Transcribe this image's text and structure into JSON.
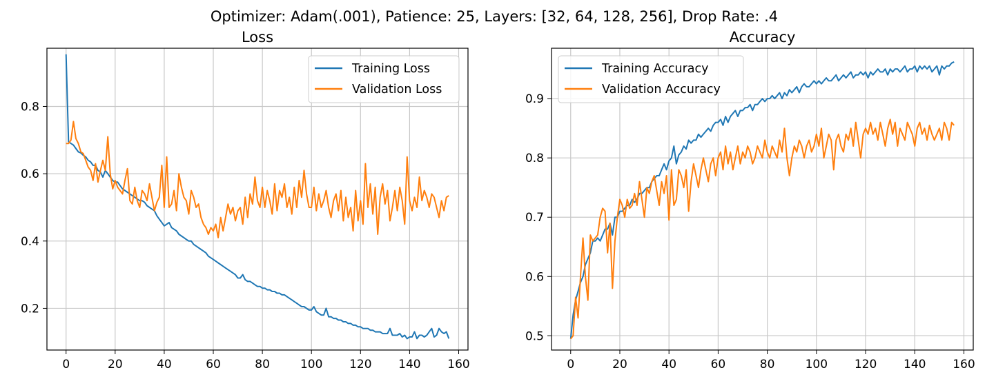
{
  "suptitle": "Optimizer: Adam(.001), Patience: 25, Layers: [32, 64, 128, 256], Drop Rate: .4",
  "colors": {
    "series1": "#1f77b4",
    "series2": "#ff7f0e",
    "grid": "#c8c8c8"
  },
  "chart_data": [
    {
      "type": "line",
      "title": "Loss",
      "xlabel": "",
      "ylabel": "",
      "xlim": [
        -7.8,
        163.8
      ],
      "ylim": [
        0.076,
        0.973
      ],
      "xticks": [
        0,
        20,
        40,
        60,
        80,
        100,
        120,
        140,
        160
      ],
      "yticks": [
        0.2,
        0.4,
        0.6,
        0.8
      ],
      "ytick_labels": [
        "0.2",
        "0.4",
        "0.6",
        "0.8"
      ],
      "grid": true,
      "legend": "upper right",
      "x": {
        "start": 0,
        "end": 156
      },
      "series": [
        {
          "name": "Training Loss",
          "color": "#1f77b4",
          "values": [
            0.955,
            0.695,
            0.69,
            0.685,
            0.675,
            0.665,
            0.662,
            0.655,
            0.65,
            0.64,
            0.635,
            0.625,
            0.625,
            0.61,
            0.605,
            0.59,
            0.61,
            0.6,
            0.59,
            0.58,
            0.575,
            0.575,
            0.565,
            0.555,
            0.55,
            0.545,
            0.54,
            0.535,
            0.53,
            0.525,
            0.52,
            0.52,
            0.515,
            0.505,
            0.5,
            0.495,
            0.49,
            0.475,
            0.465,
            0.455,
            0.445,
            0.45,
            0.455,
            0.44,
            0.435,
            0.43,
            0.42,
            0.415,
            0.41,
            0.405,
            0.4,
            0.4,
            0.39,
            0.385,
            0.38,
            0.375,
            0.37,
            0.365,
            0.355,
            0.35,
            0.345,
            0.34,
            0.335,
            0.33,
            0.325,
            0.32,
            0.315,
            0.31,
            0.305,
            0.3,
            0.29,
            0.29,
            0.3,
            0.285,
            0.28,
            0.28,
            0.275,
            0.27,
            0.265,
            0.265,
            0.26,
            0.26,
            0.255,
            0.255,
            0.25,
            0.25,
            0.245,
            0.245,
            0.24,
            0.24,
            0.235,
            0.23,
            0.225,
            0.22,
            0.215,
            0.21,
            0.205,
            0.205,
            0.2,
            0.195,
            0.195,
            0.205,
            0.19,
            0.185,
            0.18,
            0.18,
            0.2,
            0.175,
            0.175,
            0.17,
            0.17,
            0.165,
            0.165,
            0.16,
            0.16,
            0.155,
            0.155,
            0.15,
            0.15,
            0.145,
            0.145,
            0.14,
            0.14,
            0.14,
            0.135,
            0.135,
            0.13,
            0.13,
            0.13,
            0.125,
            0.125,
            0.125,
            0.14,
            0.12,
            0.12,
            0.12,
            0.125,
            0.115,
            0.12,
            0.11,
            0.115,
            0.115,
            0.13,
            0.11,
            0.12,
            0.12,
            0.115,
            0.12,
            0.13,
            0.14,
            0.115,
            0.12,
            0.14,
            0.13,
            0.125,
            0.13,
            0.11
          ]
        },
        {
          "name": "Validation Loss",
          "color": "#ff7f0e",
          "values": [
            0.69,
            0.69,
            0.7,
            0.755,
            0.705,
            0.69,
            0.665,
            0.66,
            0.64,
            0.62,
            0.61,
            0.58,
            0.63,
            0.575,
            0.61,
            0.64,
            0.61,
            0.71,
            0.6,
            0.555,
            0.58,
            0.56,
            0.55,
            0.54,
            0.58,
            0.615,
            0.52,
            0.51,
            0.56,
            0.52,
            0.5,
            0.55,
            0.54,
            0.52,
            0.57,
            0.53,
            0.49,
            0.515,
            0.53,
            0.625,
            0.5,
            0.65,
            0.5,
            0.51,
            0.55,
            0.49,
            0.6,
            0.56,
            0.53,
            0.52,
            0.48,
            0.55,
            0.53,
            0.5,
            0.51,
            0.47,
            0.45,
            0.44,
            0.42,
            0.44,
            0.43,
            0.45,
            0.41,
            0.47,
            0.43,
            0.47,
            0.51,
            0.48,
            0.5,
            0.46,
            0.49,
            0.5,
            0.45,
            0.53,
            0.47,
            0.54,
            0.51,
            0.59,
            0.52,
            0.5,
            0.56,
            0.5,
            0.55,
            0.52,
            0.48,
            0.57,
            0.49,
            0.55,
            0.53,
            0.57,
            0.5,
            0.53,
            0.48,
            0.56,
            0.5,
            0.58,
            0.53,
            0.61,
            0.54,
            0.5,
            0.5,
            0.56,
            0.49,
            0.54,
            0.5,
            0.52,
            0.55,
            0.5,
            0.47,
            0.52,
            0.54,
            0.49,
            0.55,
            0.46,
            0.53,
            0.47,
            0.5,
            0.43,
            0.55,
            0.46,
            0.52,
            0.45,
            0.63,
            0.5,
            0.57,
            0.48,
            0.56,
            0.42,
            0.53,
            0.57,
            0.51,
            0.55,
            0.46,
            0.5,
            0.55,
            0.49,
            0.56,
            0.52,
            0.45,
            0.65,
            0.52,
            0.49,
            0.53,
            0.5,
            0.59,
            0.52,
            0.55,
            0.53,
            0.5,
            0.54,
            0.53,
            0.5,
            0.47,
            0.52,
            0.49,
            0.53,
            0.535
          ]
        }
      ]
    },
    {
      "type": "line",
      "title": "Accuracy",
      "xlabel": "",
      "ylabel": "",
      "xlim": [
        -7.8,
        163.8
      ],
      "ylim": [
        0.476,
        0.985
      ],
      "xticks": [
        0,
        20,
        40,
        60,
        80,
        100,
        120,
        140,
        160
      ],
      "yticks": [
        0.5,
        0.6,
        0.7,
        0.8,
        0.9
      ],
      "ytick_labels": [
        "0.5",
        "0.6",
        "0.7",
        "0.8",
        "0.9"
      ],
      "grid": true,
      "legend": "upper left",
      "x": {
        "start": 0,
        "end": 156
      },
      "series": [
        {
          "name": "Training Accuracy",
          "color": "#1f77b4",
          "values": [
            0.495,
            0.535,
            0.56,
            0.575,
            0.59,
            0.6,
            0.62,
            0.63,
            0.64,
            0.66,
            0.66,
            0.665,
            0.66,
            0.67,
            0.68,
            0.68,
            0.69,
            0.67,
            0.7,
            0.7,
            0.71,
            0.71,
            0.715,
            0.72,
            0.72,
            0.73,
            0.725,
            0.73,
            0.74,
            0.74,
            0.745,
            0.75,
            0.75,
            0.76,
            0.765,
            0.77,
            0.77,
            0.78,
            0.79,
            0.78,
            0.795,
            0.8,
            0.82,
            0.79,
            0.805,
            0.81,
            0.82,
            0.815,
            0.83,
            0.825,
            0.83,
            0.83,
            0.84,
            0.835,
            0.84,
            0.845,
            0.85,
            0.845,
            0.855,
            0.86,
            0.86,
            0.865,
            0.855,
            0.87,
            0.86,
            0.87,
            0.875,
            0.88,
            0.87,
            0.88,
            0.88,
            0.885,
            0.885,
            0.89,
            0.88,
            0.89,
            0.89,
            0.895,
            0.9,
            0.895,
            0.9,
            0.9,
            0.905,
            0.9,
            0.905,
            0.91,
            0.9,
            0.91,
            0.905,
            0.915,
            0.91,
            0.915,
            0.92,
            0.91,
            0.92,
            0.925,
            0.92,
            0.92,
            0.925,
            0.93,
            0.925,
            0.93,
            0.925,
            0.93,
            0.935,
            0.93,
            0.93,
            0.935,
            0.94,
            0.93,
            0.935,
            0.94,
            0.935,
            0.94,
            0.945,
            0.935,
            0.94,
            0.94,
            0.945,
            0.94,
            0.945,
            0.935,
            0.945,
            0.94,
            0.945,
            0.95,
            0.945,
            0.945,
            0.95,
            0.94,
            0.95,
            0.945,
            0.95,
            0.95,
            0.945,
            0.95,
            0.955,
            0.945,
            0.95,
            0.95,
            0.955,
            0.945,
            0.955,
            0.95,
            0.955,
            0.95,
            0.955,
            0.945,
            0.95,
            0.955,
            0.94,
            0.955,
            0.95,
            0.955,
            0.955,
            0.96,
            0.962
          ]
        },
        {
          "name": "Validation Accuracy",
          "color": "#ff7f0e",
          "values": [
            0.495,
            0.5,
            0.565,
            0.53,
            0.6,
            0.665,
            0.6,
            0.56,
            0.67,
            0.66,
            0.665,
            0.67,
            0.7,
            0.715,
            0.71,
            0.64,
            0.69,
            0.58,
            0.66,
            0.7,
            0.73,
            0.72,
            0.7,
            0.73,
            0.715,
            0.72,
            0.74,
            0.72,
            0.76,
            0.73,
            0.7,
            0.75,
            0.74,
            0.76,
            0.77,
            0.745,
            0.72,
            0.76,
            0.74,
            0.77,
            0.695,
            0.78,
            0.72,
            0.73,
            0.78,
            0.77,
            0.75,
            0.78,
            0.71,
            0.76,
            0.79,
            0.77,
            0.75,
            0.78,
            0.8,
            0.78,
            0.76,
            0.79,
            0.8,
            0.77,
            0.8,
            0.81,
            0.78,
            0.82,
            0.79,
            0.81,
            0.78,
            0.8,
            0.82,
            0.79,
            0.81,
            0.8,
            0.82,
            0.81,
            0.79,
            0.8,
            0.82,
            0.81,
            0.8,
            0.83,
            0.81,
            0.8,
            0.82,
            0.81,
            0.8,
            0.83,
            0.81,
            0.85,
            0.8,
            0.77,
            0.8,
            0.82,
            0.81,
            0.83,
            0.82,
            0.8,
            0.82,
            0.83,
            0.81,
            0.82,
            0.84,
            0.82,
            0.85,
            0.8,
            0.82,
            0.84,
            0.83,
            0.78,
            0.83,
            0.84,
            0.82,
            0.81,
            0.84,
            0.83,
            0.85,
            0.82,
            0.86,
            0.83,
            0.8,
            0.84,
            0.85,
            0.84,
            0.86,
            0.84,
            0.85,
            0.83,
            0.86,
            0.84,
            0.82,
            0.85,
            0.865,
            0.84,
            0.86,
            0.82,
            0.85,
            0.84,
            0.83,
            0.86,
            0.85,
            0.84,
            0.82,
            0.85,
            0.86,
            0.84,
            0.85,
            0.83,
            0.855,
            0.84,
            0.83,
            0.84,
            0.85,
            0.83,
            0.86,
            0.85,
            0.83,
            0.86,
            0.855
          ]
        }
      ]
    }
  ]
}
